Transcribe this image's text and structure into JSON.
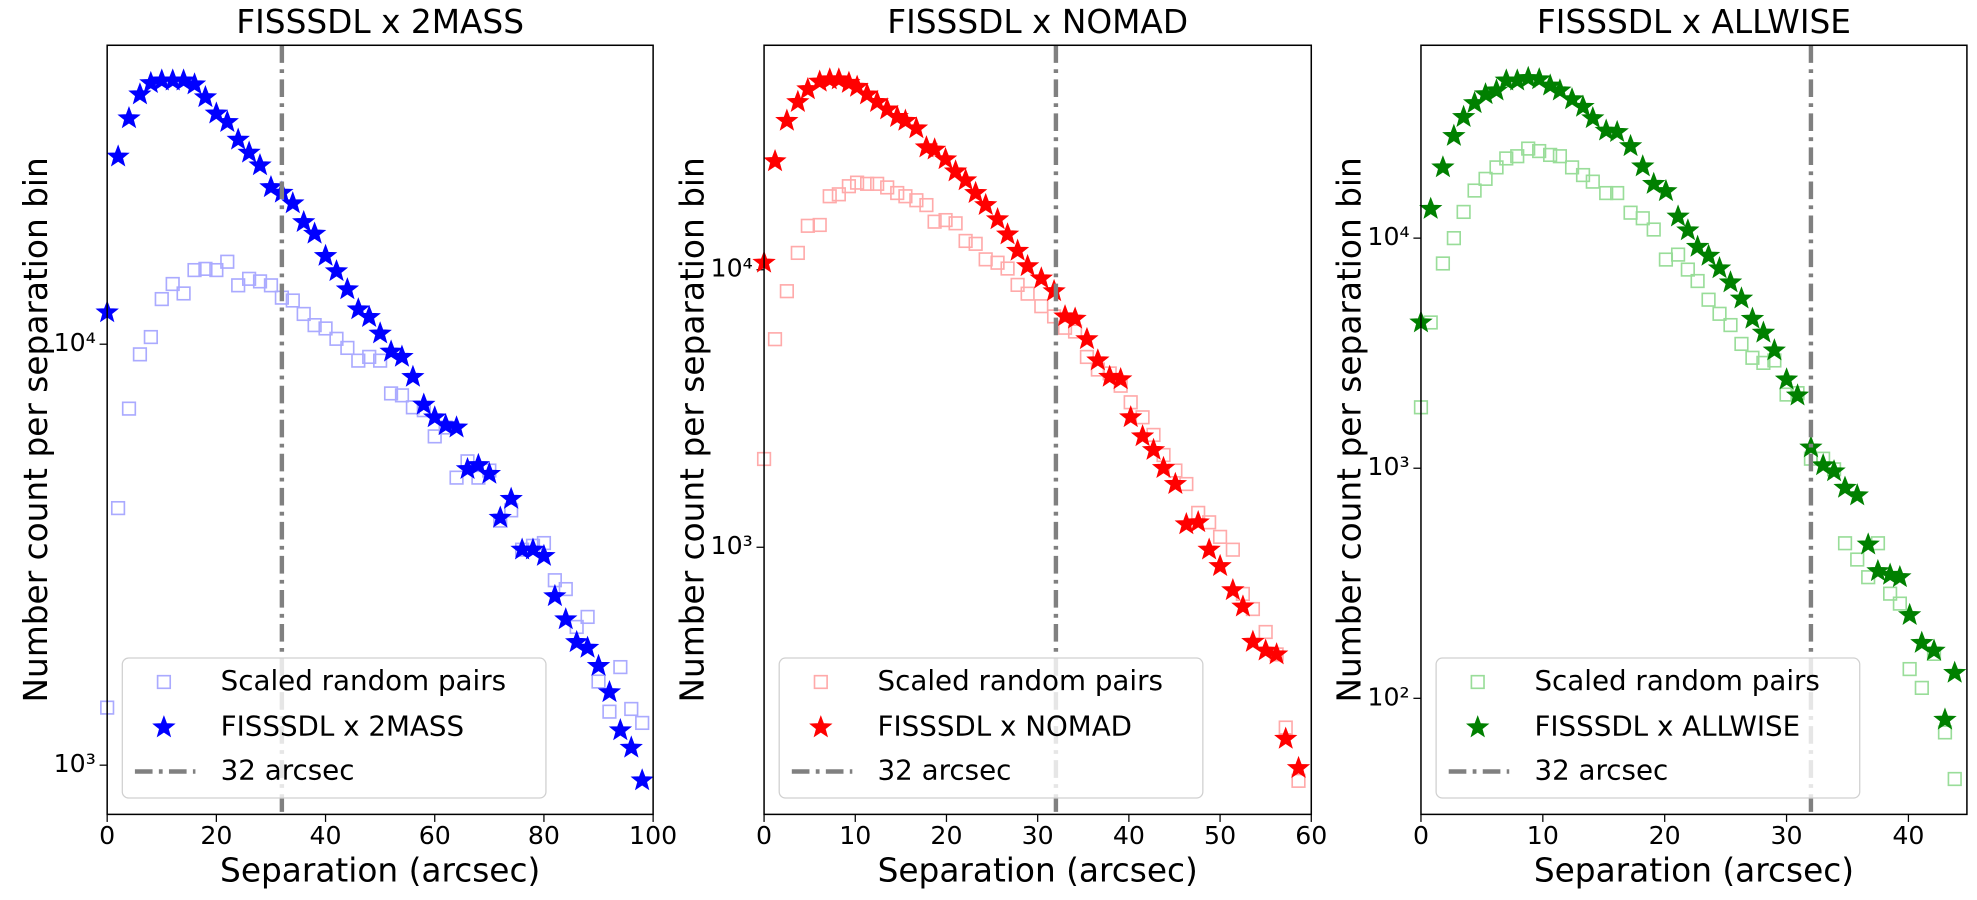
{
  "chart_data": [
    {
      "type": "scatter",
      "title": "FISSSDL x 2MASS",
      "x_label": "Separation (arcsec)",
      "y_label": "Number count per separation bin",
      "log_y": true,
      "xlim": [
        0,
        100
      ],
      "ylim": [
        764,
        51300
      ],
      "xticks": [
        0,
        20,
        40,
        60,
        80,
        100
      ],
      "yticks": [
        {
          "value": 1000,
          "label": "10³"
        },
        {
          "value": 10000,
          "label": "10⁴"
        }
      ],
      "vline": 32,
      "vline_label": "32 arcsec",
      "vline_color": "#808080",
      "legend": "lower left",
      "x": [
        0,
        2,
        4,
        6,
        8,
        10,
        12,
        14,
        16,
        18,
        20,
        22,
        24,
        26,
        28,
        30,
        32,
        34,
        36,
        38,
        40,
        42,
        44,
        46,
        48,
        50,
        52,
        54,
        56,
        58,
        60,
        62,
        64,
        66,
        68,
        70,
        72,
        74,
        76,
        78,
        80,
        82,
        84,
        86,
        88,
        90,
        92,
        94,
        96,
        98
      ],
      "series": [
        {
          "name": "Scaled random pairs",
          "marker": "square",
          "color": "#aaaaff",
          "values": [
            1370,
            4080,
            7030,
            9460,
            10400,
            12800,
            13900,
            13200,
            15000,
            15100,
            15000,
            15700,
            13800,
            14300,
            14100,
            13800,
            12900,
            12700,
            11800,
            11100,
            10900,
            10300,
            9800,
            9140,
            9330,
            9140,
            7640,
            7560,
            7080,
            6970,
            6040,
            6340,
            4820,
            5270,
            4820,
            5010,
            3810,
            4030,
            3250,
            3320,
            3370,
            2750,
            2620,
            2130,
            2250,
            1580,
            1340,
            1710,
            1360,
            1260
          ]
        },
        {
          "name": "FISSSDL x 2MASS",
          "marker": "star",
          "color": "#0000ff",
          "values": [
            11900,
            27900,
            34400,
            39200,
            41700,
            42300,
            42300,
            42300,
            41400,
            38600,
            35300,
            33700,
            30600,
            28500,
            26600,
            23600,
            22900,
            21600,
            19500,
            18300,
            16200,
            14900,
            13500,
            12100,
            11600,
            10600,
            9600,
            9330,
            8360,
            7180,
            6700,
            6420,
            6340,
            5050,
            5160,
            4920,
            3870,
            4290,
            3250,
            3250,
            3140,
            2520,
            2220,
            1960,
            1900,
            1720,
            1490,
            1210,
            1100,
            920
          ]
        }
      ]
    },
    {
      "type": "scatter",
      "title": "FISSSDL x NOMAD",
      "x_label": "Separation (arcsec)",
      "y_label": "Number count per separation bin",
      "log_y": true,
      "xlim": [
        0,
        60
      ],
      "ylim": [
        109,
        64400
      ],
      "xticks": [
        0,
        10,
        20,
        30,
        40,
        50,
        60
      ],
      "yticks": [
        {
          "value": 1000,
          "label": "10³"
        },
        {
          "value": 10000,
          "label": "10⁴"
        }
      ],
      "vline": 32,
      "vline_label": "32 arcsec",
      "vline_color": "#808080",
      "legend": "lower left",
      "x": [
        0,
        1.2,
        2.5,
        3.7,
        4.8,
        6.1,
        7.2,
        8.2,
        9.3,
        10.2,
        11.3,
        12.4,
        13.5,
        14.6,
        15.5,
        16.7,
        17.8,
        18.7,
        19.9,
        21.0,
        22.1,
        23.2,
        24.3,
        25.6,
        26.7,
        27.8,
        28.9,
        30.4,
        31.8,
        33.0,
        34.1,
        35.4,
        36.6,
        37.9,
        39.1,
        40.2,
        41.5,
        42.7,
        43.8,
        45.1,
        46.3,
        47.6,
        48.8,
        50.0,
        51.4,
        52.5,
        53.6,
        55.0,
        56.2,
        57.2,
        58.6
      ],
      "series": [
        {
          "name": "Scaled random pairs",
          "marker": "square",
          "color": "#ffaaaa",
          "values": [
            2080,
            5620,
            8370,
            11500,
            14400,
            14500,
            18400,
            18700,
            20000,
            20600,
            20400,
            20400,
            19800,
            18900,
            18400,
            17800,
            17100,
            14900,
            15100,
            14700,
            12700,
            12400,
            10900,
            10600,
            10100,
            8820,
            8200,
            7390,
            6790,
            6180,
            5990,
            4850,
            4370,
            4230,
            3820,
            3330,
            2940,
            2540,
            2150,
            1890,
            1690,
            1330,
            1230,
            1090,
            980,
            679,
            599,
            495,
            411,
            224,
            144
          ]
        },
        {
          "name": "FISSSDL x NOMAD",
          "marker": "star",
          "color": "#ff0000",
          "values": [
            10600,
            24600,
            34400,
            40200,
            44700,
            47600,
            48500,
            48500,
            47100,
            45600,
            42800,
            40200,
            37800,
            35500,
            34400,
            32300,
            27600,
            27100,
            25000,
            22600,
            21000,
            18900,
            17100,
            15200,
            13400,
            11700,
            10300,
            9300,
            8370,
            6790,
            6660,
            5620,
            4710,
            4110,
            4030,
            2940,
            2510,
            2240,
            1930,
            1690,
            1210,
            1230,
            980,
            855,
            700,
            611,
            456,
            424,
            411,
            204,
            160
          ]
        }
      ]
    },
    {
      "type": "scatter",
      "title": "FISSSDL x ALLWISE",
      "x_label": "Separation (arcsec)",
      "y_label": "Number count per separation bin",
      "log_y": true,
      "xlim": [
        0,
        44.8
      ],
      "ylim": [
        31.3,
        68900
      ],
      "xticks": [
        0,
        10,
        20,
        30,
        40
      ],
      "yticks": [
        {
          "value": 100,
          "label": "10²"
        },
        {
          "value": 1000,
          "label": "10³"
        },
        {
          "value": 10000,
          "label": "10⁴"
        }
      ],
      "vline": 32,
      "vline_label": "32 arcsec",
      "vline_color": "#808080",
      "legend": "lower left",
      "x": [
        0,
        0.8,
        1.8,
        2.7,
        3.5,
        4.4,
        5.3,
        6.2,
        7.0,
        7.9,
        8.8,
        9.7,
        10.6,
        11.4,
        12.4,
        13.3,
        14.1,
        15.2,
        16.1,
        17.2,
        18.2,
        19.1,
        20.1,
        21.1,
        21.9,
        22.7,
        23.6,
        24.5,
        25.4,
        26.3,
        27.2,
        28.1,
        29.0,
        30.0,
        30.9,
        32.0,
        33.0,
        33.9,
        34.8,
        35.8,
        36.7,
        37.5,
        38.5,
        39.3,
        40.1,
        41.1,
        42.1,
        43.0,
        43.8
      ],
      "series": [
        {
          "name": "Scaled random pairs",
          "marker": "square",
          "color": "#99dd99",
          "values": [
            1840,
            4300,
            7760,
            10000,
            13000,
            16100,
            18100,
            20300,
            22200,
            22700,
            24500,
            23900,
            23000,
            22700,
            20300,
            18800,
            17600,
            15700,
            15700,
            12900,
            12200,
            10900,
            8070,
            8480,
            7300,
            6510,
            5400,
            4690,
            4190,
            3470,
            3020,
            2870,
            2940,
            2090,
            2120,
            1100,
            1100,
            989,
            472,
            401,
            336,
            472,
            285,
            258,
            134,
            111,
            156,
            71.1,
            44.6
          ]
        },
        {
          "name": "FISSSDL x ALLWISE",
          "marker": "star",
          "color": "#008000",
          "values": [
            4300,
            13400,
            20300,
            27800,
            33600,
            38600,
            42200,
            43800,
            48400,
            48400,
            49600,
            49000,
            46000,
            43800,
            40100,
            37200,
            33200,
            29300,
            28900,
            25100,
            20500,
            17200,
            16000,
            12400,
            10800,
            9160,
            8380,
            7390,
            6420,
            5460,
            4460,
            3880,
            3250,
            2430,
            2070,
            1230,
            1030,
            969,
            822,
            762,
            466,
            357,
            344,
            336,
            230,
            174,
            161,
            80.7,
            129
          ]
        }
      ]
    }
  ]
}
